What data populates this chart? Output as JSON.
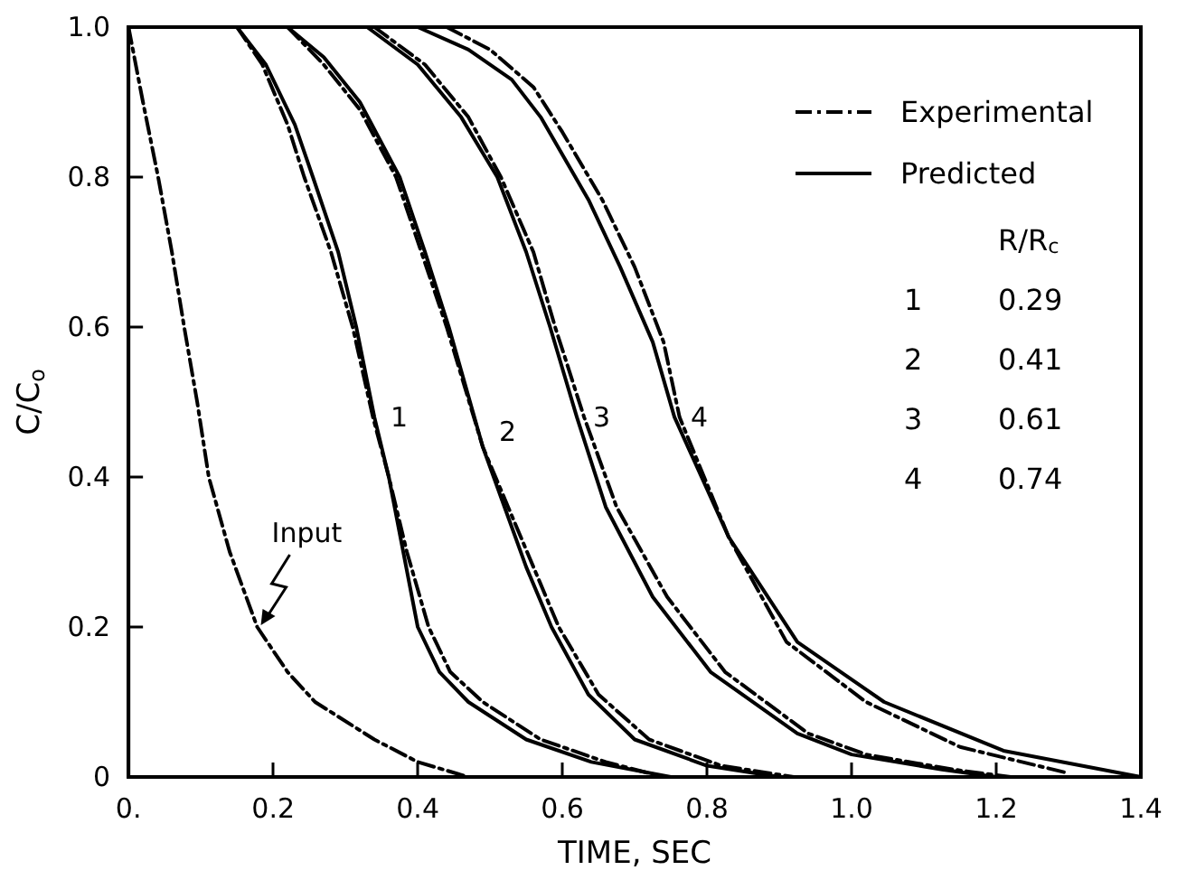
{
  "chart_data": {
    "type": "line",
    "xlabel": "TIME, SEC",
    "ylabel": "C/C$_{o}$",
    "xlim": [
      0,
      1.4
    ],
    "xticks": [
      {
        "value": 0,
        "label": "0."
      },
      0.2,
      0.4,
      0.6,
      0.8,
      {
        "value": 1,
        "label": "1.0"
      },
      1.2,
      1.4
    ],
    "ylim": [
      0,
      1
    ],
    "yticks": [
      0,
      0.2,
      0.4,
      0.6,
      0.8,
      {
        "value": 1,
        "label": "1.0"
      }
    ],
    "grid": false,
    "legend": "top right",
    "marker": "none",
    "series": [
      {
        "name": "Experimental",
        "color": "#000000",
        "line_style": "dashdot",
        "x": [
          0,
          0.02,
          0.041,
          0.06,
          0.077,
          0.095,
          0.111,
          0.14,
          0.178,
          0.22,
          0.258,
          0.34,
          0.4,
          0.47
        ],
        "values": [
          1,
          0.9,
          0.8,
          0.7,
          0.6,
          0.5,
          0.4,
          0.3,
          0.2,
          0.14,
          0.1,
          0.05,
          0.02,
          0
        ]
      },
      {
        "name": "Predicted",
        "color": "#000000",
        "line_style": "solid",
        "x": [
          0.15,
          0.19,
          0.23,
          0.255,
          0.29,
          0.315,
          0.34,
          0.36,
          0.38,
          0.4,
          0.43,
          0.47,
          0.55,
          0.64,
          0.75
        ],
        "values": [
          1,
          0.95,
          0.87,
          0.8,
          0.7,
          0.6,
          0.48,
          0.4,
          0.3,
          0.2,
          0.14,
          0.1,
          0.05,
          0.02,
          0
        ]
      },
      {
        "color": "#000000",
        "line_style": "dashdot",
        "x": [
          0.15,
          0.185,
          0.22,
          0.243,
          0.28,
          0.31,
          0.338,
          0.36,
          0.385,
          0.415,
          0.445,
          0.49,
          0.57,
          0.66,
          0.74
        ],
        "values": [
          1,
          0.95,
          0.87,
          0.8,
          0.7,
          0.6,
          0.48,
          0.4,
          0.3,
          0.2,
          0.14,
          0.1,
          0.05,
          0.02,
          0
        ]
      },
      {
        "color": "#000000",
        "line_style": "solid",
        "x": [
          0.22,
          0.27,
          0.32,
          0.375,
          0.41,
          0.443,
          0.49,
          0.52,
          0.55,
          0.585,
          0.636,
          0.7,
          0.8,
          0.9
        ],
        "values": [
          1,
          0.96,
          0.9,
          0.8,
          0.7,
          0.6,
          0.44,
          0.36,
          0.28,
          0.2,
          0.11,
          0.05,
          0.015,
          0
        ]
      },
      {
        "color": "#000000",
        "line_style": "dashdot",
        "x": [
          0.22,
          0.27,
          0.32,
          0.37,
          0.405,
          0.44,
          0.49,
          0.525,
          0.56,
          0.595,
          0.65,
          0.72,
          0.82,
          0.92
        ],
        "values": [
          1,
          0.95,
          0.89,
          0.8,
          0.7,
          0.6,
          0.44,
          0.36,
          0.28,
          0.2,
          0.11,
          0.05,
          0.015,
          0
        ]
      },
      {
        "color": "#000000",
        "line_style": "solid",
        "x": [
          0.33,
          0.4,
          0.46,
          0.51,
          0.55,
          0.583,
          0.62,
          0.66,
          0.725,
          0.805,
          0.925,
          1.0,
          1.125,
          1.2
        ],
        "values": [
          1,
          0.95,
          0.88,
          0.8,
          0.7,
          0.6,
          0.48,
          0.36,
          0.24,
          0.14,
          0.058,
          0.03,
          0.01,
          0
        ]
      },
      {
        "color": "#000000",
        "line_style": "dashdot",
        "x": [
          0.34,
          0.41,
          0.47,
          0.515,
          0.56,
          0.59,
          0.63,
          0.675,
          0.745,
          0.825,
          0.94,
          1.02,
          1.14,
          1.22
        ],
        "values": [
          1,
          0.95,
          0.88,
          0.8,
          0.7,
          0.6,
          0.48,
          0.36,
          0.24,
          0.14,
          0.058,
          0.03,
          0.01,
          0
        ]
      },
      {
        "color": "#000000",
        "line_style": "solid",
        "x": [
          0.4,
          0.47,
          0.53,
          0.57,
          0.636,
          0.68,
          0.725,
          0.755,
          0.83,
          0.925,
          1.045,
          1.21,
          1.4
        ],
        "values": [
          1,
          0.97,
          0.93,
          0.88,
          0.77,
          0.68,
          0.58,
          0.48,
          0.32,
          0.18,
          0.1,
          0.035,
          0
        ]
      },
      {
        "color": "#000000",
        "line_style": "dashdot",
        "x": [
          0.44,
          0.5,
          0.56,
          0.6,
          0.655,
          0.7,
          0.74,
          0.762,
          0.83,
          0.91,
          1.02,
          1.15,
          1.3
        ],
        "values": [
          1,
          0.97,
          0.92,
          0.86,
          0.77,
          0.68,
          0.58,
          0.48,
          0.32,
          0.18,
          0.1,
          0.04,
          0.005
        ]
      }
    ],
    "annotations": [
      {
        "text": "Input",
        "x": 0.178,
        "y": 0.2
      },
      {
        "text": "1",
        "x": 0.34,
        "y": 0.48
      },
      {
        "text": "2",
        "x": 0.49,
        "y": 0.46
      },
      {
        "text": "3",
        "x": 0.62,
        "y": 0.48
      },
      {
        "text": "4",
        "x": 0.755,
        "y": 0.48
      },
      "R/R$_{c}$",
      "1",
      "0.29",
      "2",
      "0.41",
      "3",
      "0.61",
      "4",
      "0.74"
    ]
  }
}
